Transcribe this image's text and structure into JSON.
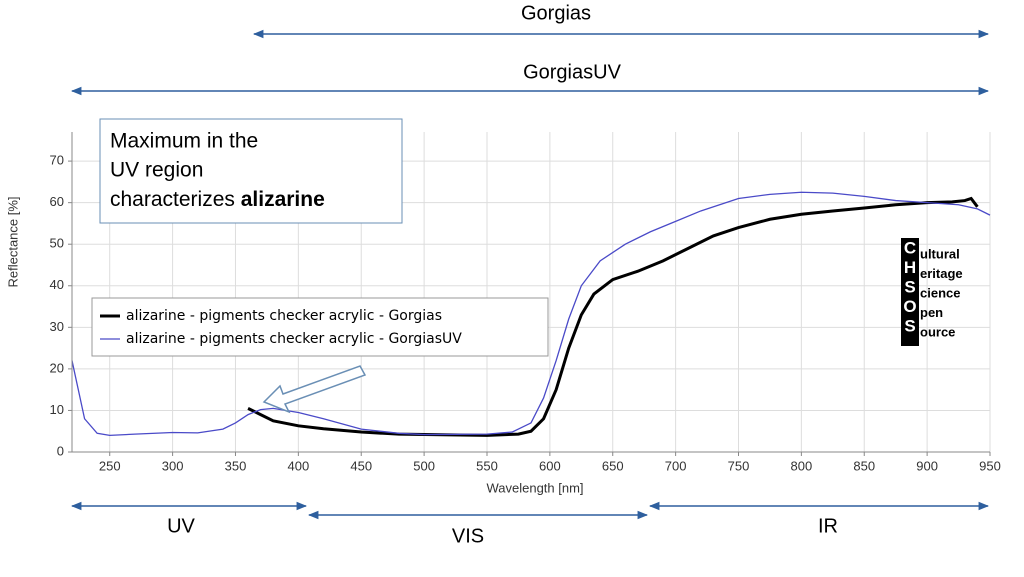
{
  "chart_data": {
    "type": "line",
    "x_label": "Wavelength [nm]",
    "y_label": "Reflectance [%]",
    "xlim": [
      220,
      950
    ],
    "xticks": [
      250,
      300,
      350,
      400,
      450,
      500,
      550,
      600,
      650,
      700,
      750,
      800,
      850,
      900,
      950
    ],
    "ylim": [
      0,
      77
    ],
    "yticks": [
      0,
      10,
      20,
      30,
      40,
      50,
      60,
      70
    ],
    "grid": true,
    "legend": "upper left",
    "series": [
      {
        "name": "alizarine - pigments checker acrylic - Gorgias",
        "color": "#000000",
        "x": [
          360,
          370,
          380,
          400,
          420,
          450,
          480,
          500,
          550,
          575,
          585,
          595,
          605,
          615,
          625,
          635,
          650,
          670,
          690,
          710,
          730,
          750,
          775,
          800,
          825,
          850,
          875,
          900,
          920,
          930,
          935,
          940
        ],
        "values": [
          10.5,
          9,
          7.5,
          6.3,
          5.6,
          4.8,
          4.3,
          4.2,
          4.0,
          4.3,
          5,
          8,
          15,
          25,
          33,
          38,
          41.5,
          43.5,
          46,
          49,
          52,
          54,
          56,
          57.2,
          58,
          58.7,
          59.5,
          60,
          60.2,
          60.5,
          61,
          59
        ]
      },
      {
        "name": "alizarine - pigments checker acrylic - GorgiasUV",
        "color": "#4a4ac8",
        "x": [
          220,
          225,
          230,
          240,
          250,
          270,
          300,
          320,
          340,
          350,
          360,
          370,
          380,
          400,
          420,
          450,
          480,
          500,
          550,
          570,
          585,
          595,
          605,
          615,
          625,
          640,
          660,
          680,
          700,
          720,
          750,
          775,
          800,
          825,
          850,
          875,
          900,
          925,
          940,
          950
        ],
        "values": [
          22,
          15,
          8,
          4.5,
          4,
          4.3,
          4.7,
          4.6,
          5.5,
          7,
          9,
          10.2,
          10.5,
          9.5,
          8,
          5.5,
          4.5,
          4.2,
          4.3,
          4.8,
          7,
          13,
          22,
          32,
          40,
          46,
          50,
          53,
          55.5,
          58,
          61,
          62,
          62.5,
          62.3,
          61.5,
          60.5,
          60,
          59.5,
          58.5,
          57
        ]
      }
    ],
    "annotations": {
      "range_top": "Gorgias",
      "range_second": "GorgiasUV",
      "uv": "UV",
      "vis": "VIS",
      "ir": "IR",
      "callout": [
        "Maximum in the",
        "UV region",
        "characterizes ",
        "alizarine"
      ]
    },
    "logo": {
      "letters": [
        "C",
        "H",
        "S",
        "O",
        "S"
      ],
      "words": [
        "ultural",
        "eritage",
        "cience",
        "pen",
        "ource"
      ]
    }
  }
}
